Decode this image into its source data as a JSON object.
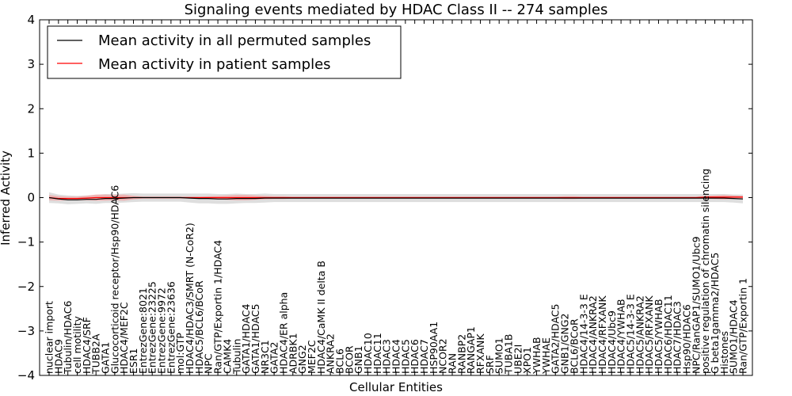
{
  "chart_data": {
    "type": "line",
    "title": "Signaling events mediated by HDAC Class II -- 274 samples",
    "xlabel": "Cellular Entities",
    "ylabel": "Inferred Activity",
    "ylim": [
      -4,
      4
    ],
    "yticks": [
      "−4",
      "−3",
      "−2",
      "−1",
      "0",
      "1",
      "2",
      "3",
      "4"
    ],
    "legend": {
      "position": "top-left",
      "entries": [
        {
          "label": "Mean activity in all permuted samples",
          "color": "#000000"
        },
        {
          "label": "Mean activity in patient samples",
          "color": "#ff0000"
        }
      ]
    },
    "categories": [
      "nuclear import",
      "HDAC9",
      "Tubulin/HDAC6",
      "cell motility",
      "HDAC4/SRF",
      "TUBB2A",
      "GATA1",
      "Glucocorticoid receptor/Hsp90/HDAC6",
      "HDAC4/MEF2C",
      "ESR1",
      "EntrezGene:8021",
      "EntrezGene:23225",
      "EntrezGene:9972",
      "EntrezGene:23636",
      "mol:GTP",
      "HDAC4/HDAC3/SMRT (N-CoR2)",
      "HDAC5/BCL6/BCoR",
      "NPC",
      "Ran/GTP/Exportin 1/HDAC4",
      "CAMK4",
      "Tubulin",
      "GATA1/HDAC4",
      "GATA1/HDAC5",
      "NR3C1",
      "GATA2",
      "HDAC4/ER alpha",
      "ADRBK1",
      "GNG2",
      "MEF2C",
      "HDAC4/CaMK II delta B",
      "ANKRA2",
      "BCL6",
      "BCOR",
      "GNB1",
      "HDAC10",
      "HDAC11",
      "HDAC3",
      "HDAC4",
      "HDAC5",
      "HDAC6",
      "HDAC7",
      "HSP90AA1",
      "NCOR2",
      "RAN",
      "RANBP2",
      "RANGAP1",
      "RFXANK",
      "SRF",
      "SUMO1",
      "TUBA1B",
      "UBE2I",
      "XPO1",
      "YWHAB",
      "YWHAE",
      "GATA2/HDAC5",
      "GNB1/GNG2",
      "BCL6/BCoR",
      "HDAC4/14-3-3 E",
      "HDAC4/ANKRA2",
      "HDAC4/RFXANK",
      "HDAC4/Ubc9",
      "HDAC4/YWHAB",
      "HDAC5/14-3-3 E",
      "HDAC5/ANKRA2",
      "HDAC5/RFXANK",
      "HDAC5/YWHAB",
      "HDAC6/HDAC11",
      "HDAC7/HDAC3",
      "Hsp90/HDAC6",
      "NPC/RanGAP1/SUMO1/Ubc9",
      "positive regulation of chromatin silencing",
      "G beta1gamma2/HDAC5",
      "Histones",
      "SUMO1/HDAC4",
      "Ran/GTP/Exportin 1"
    ],
    "series": [
      {
        "name": "Mean activity in all permuted samples",
        "color": "#000000",
        "band_color": "#d3d3d3",
        "values": [
          0.0,
          -0.03,
          -0.05,
          -0.05,
          -0.04,
          -0.04,
          -0.02,
          -0.02,
          -0.01,
          0.0,
          0.0,
          0.0,
          0.0,
          0.0,
          0.0,
          -0.01,
          -0.02,
          -0.02,
          -0.03,
          -0.03,
          -0.02,
          -0.02,
          -0.02,
          -0.01,
          -0.01,
          -0.01,
          -0.01,
          -0.01,
          -0.01,
          -0.01,
          -0.01,
          -0.01,
          -0.01,
          -0.01,
          -0.01,
          -0.01,
          -0.01,
          -0.01,
          -0.01,
          -0.01,
          -0.01,
          -0.01,
          -0.01,
          -0.01,
          -0.01,
          -0.01,
          -0.01,
          -0.01,
          -0.01,
          -0.01,
          -0.01,
          -0.01,
          -0.01,
          -0.01,
          -0.01,
          -0.01,
          -0.01,
          -0.01,
          -0.01,
          -0.01,
          -0.01,
          -0.01,
          -0.01,
          -0.01,
          -0.01,
          -0.01,
          -0.01,
          -0.01,
          -0.01,
          -0.01,
          -0.01,
          -0.01,
          -0.01,
          -0.02,
          -0.03
        ],
        "spread": [
          0.12,
          0.1,
          0.1,
          0.09,
          0.09,
          0.1,
          0.1,
          0.1,
          0.1,
          0.1,
          0.09,
          0.09,
          0.09,
          0.09,
          0.09,
          0.1,
          0.11,
          0.11,
          0.11,
          0.11,
          0.11,
          0.1,
          0.1,
          0.1,
          0.09,
          0.09,
          0.09,
          0.09,
          0.09,
          0.09,
          0.09,
          0.09,
          0.09,
          0.09,
          0.09,
          0.09,
          0.09,
          0.09,
          0.09,
          0.09,
          0.09,
          0.09,
          0.09,
          0.09,
          0.09,
          0.09,
          0.09,
          0.09,
          0.09,
          0.09,
          0.09,
          0.09,
          0.09,
          0.09,
          0.09,
          0.09,
          0.09,
          0.09,
          0.09,
          0.09,
          0.09,
          0.09,
          0.09,
          0.09,
          0.09,
          0.09,
          0.09,
          0.09,
          0.09,
          0.09,
          0.09,
          0.09,
          0.09,
          0.09,
          0.1
        ]
      },
      {
        "name": "Mean activity in patient samples",
        "color": "#ff0000",
        "band_color": "#f4a3a3",
        "values": [
          0.0,
          -0.02,
          -0.02,
          -0.02,
          -0.01,
          0.0,
          0.0,
          0.0,
          0.0,
          0.0,
          0.0,
          0.0,
          0.0,
          0.0,
          0.0,
          0.0,
          0.0,
          0.0,
          0.0,
          0.0,
          0.0,
          0.0,
          0.0,
          0.0,
          0.0,
          0.0,
          0.0,
          0.0,
          0.0,
          0.0,
          0.0,
          0.0,
          0.0,
          0.0,
          0.0,
          0.0,
          0.0,
          0.0,
          0.0,
          0.0,
          0.0,
          0.0,
          0.0,
          0.0,
          0.0,
          0.0,
          0.0,
          0.0,
          0.0,
          0.0,
          0.0,
          0.0,
          0.0,
          0.0,
          0.0,
          0.0,
          0.0,
          0.0,
          0.0,
          0.0,
          0.0,
          0.0,
          0.0,
          0.0,
          0.0,
          0.0,
          0.0,
          0.0,
          0.0,
          0.0,
          0.01,
          0.01,
          0.01,
          0.01,
          0.01
        ],
        "spread": [
          0.06,
          0.05,
          0.04,
          0.04,
          0.05,
          0.07,
          0.07,
          0.06,
          0.07,
          0.04,
          0.02,
          0.02,
          0.02,
          0.02,
          0.02,
          0.02,
          0.02,
          0.03,
          0.04,
          0.05,
          0.06,
          0.06,
          0.05,
          0.04,
          0.03,
          0.03,
          0.02,
          0.02,
          0.02,
          0.02,
          0.02,
          0.02,
          0.02,
          0.02,
          0.02,
          0.02,
          0.02,
          0.02,
          0.02,
          0.02,
          0.02,
          0.02,
          0.02,
          0.02,
          0.02,
          0.02,
          0.02,
          0.02,
          0.02,
          0.02,
          0.02,
          0.02,
          0.02,
          0.02,
          0.02,
          0.03,
          0.03,
          0.02,
          0.02,
          0.02,
          0.02,
          0.02,
          0.02,
          0.02,
          0.02,
          0.02,
          0.02,
          0.02,
          0.02,
          0.02,
          0.03,
          0.04,
          0.05,
          0.04,
          0.03
        ]
      }
    ]
  }
}
